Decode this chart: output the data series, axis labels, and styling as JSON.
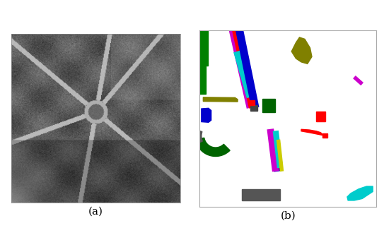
{
  "fig_width": 5.43,
  "fig_height": 3.57,
  "dpi": 100,
  "background_color": "#ffffff",
  "label_a": "(a)",
  "label_b": "(b)",
  "label_fontsize": 11,
  "panel_b_bg": "#ffffff"
}
